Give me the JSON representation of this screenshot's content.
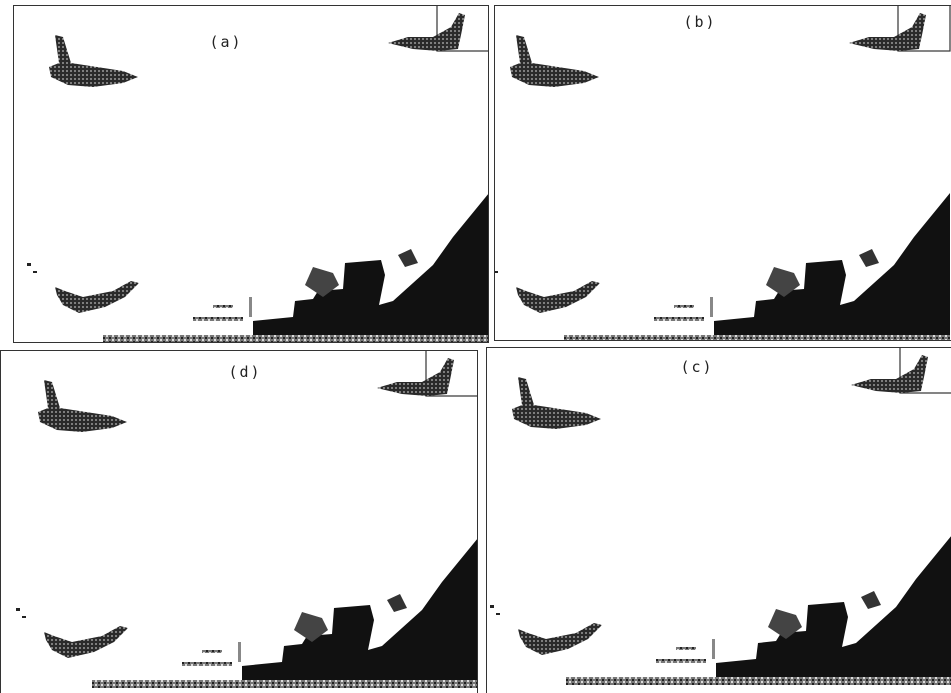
{
  "panels": [
    {
      "label": "(a)"
    },
    {
      "label": "(b)"
    },
    {
      "label": "(d)"
    },
    {
      "label": "(c)"
    }
  ]
}
